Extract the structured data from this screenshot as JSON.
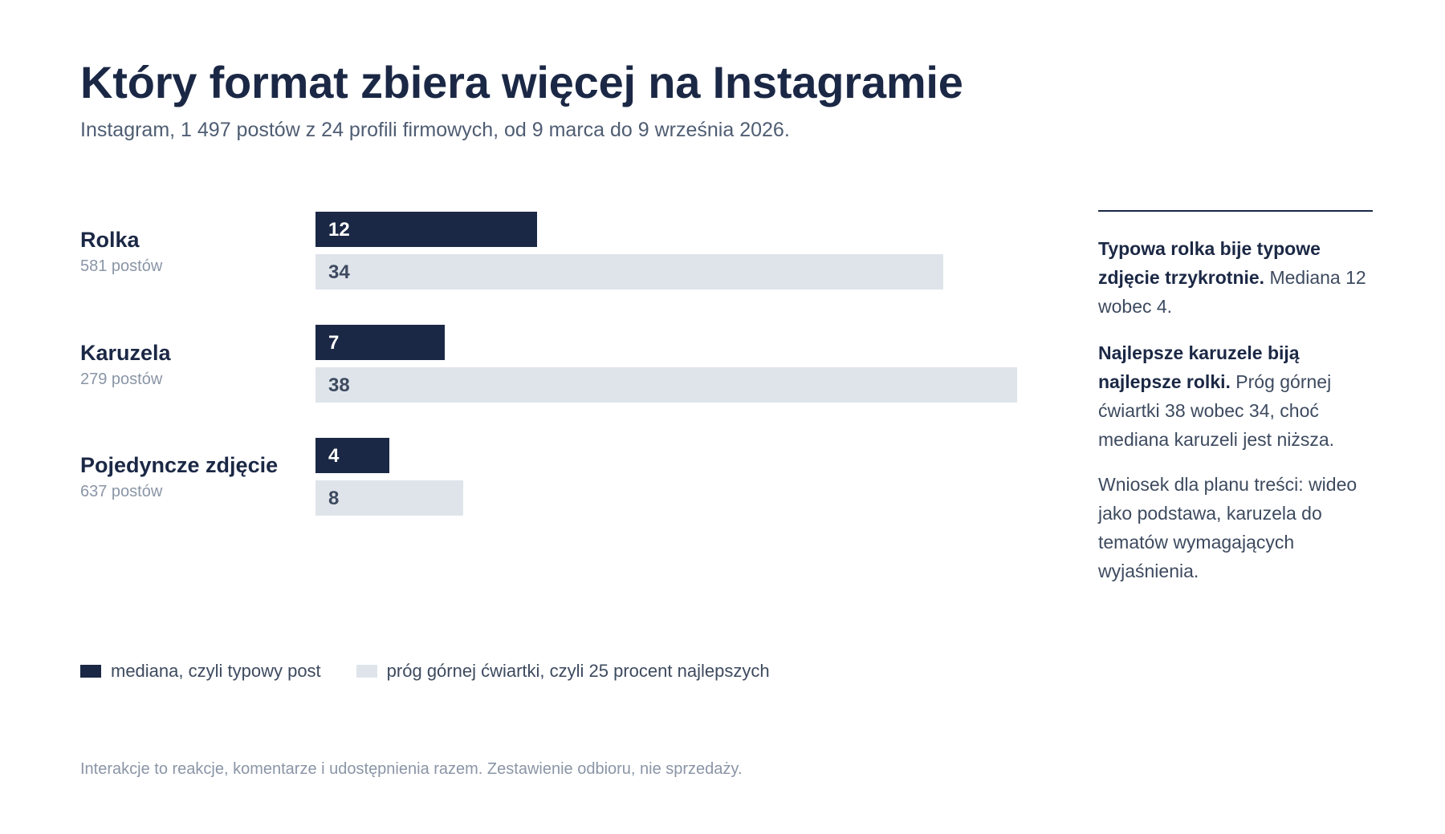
{
  "title": "Który format zbiera więcej na Instagramie",
  "subtitle": "Instagram, 1 497 postów z 24 profili firmowych, od 9 marca do 9 września 2026.",
  "colors": {
    "median": "#1b2845",
    "quartile": "#dfe4eb",
    "median_text": "#ffffff",
    "quartile_text": "#3d4a5f"
  },
  "chart_data": {
    "type": "bar",
    "orientation": "horizontal",
    "categories": [
      "Rolka",
      "Karuzela",
      "Pojedyncze zdjęcie"
    ],
    "post_counts": [
      "581 postów",
      "279 postów",
      "637 postów"
    ],
    "series": [
      {
        "name": "mediana, czyli typowy post",
        "values": [
          12,
          7,
          4
        ]
      },
      {
        "name": "próg górnej ćwiartki, czyli 25 procent najlepszych",
        "values": [
          34,
          38,
          8
        ]
      }
    ],
    "xlim": [
      0,
      38
    ],
    "grid": false,
    "legend_position": "bottom-left"
  },
  "sidebar": {
    "p1_bold": "Typowa rolka bije typowe zdjęcie trzykrotnie.",
    "p1_rest": " Mediana 12 wobec 4.",
    "p2_bold": "Najlepsze karuzele biją najlepsze rolki.",
    "p2_rest": " Próg górnej ćwiartki 38 wobec 34, choć mediana karuzeli jest niższa.",
    "p3": "Wniosek dla planu treści: wideo jako podstawa, karuzela do tematów wymagających wyjaśnienia."
  },
  "legend": {
    "median": "mediana, czyli typowy post",
    "quartile": "próg górnej ćwiartki, czyli 25 procent najlepszych"
  },
  "footnote": "Interakcje to reakcje, komentarze i udostępnienia razem. Zestawienie odbioru, nie sprzedaży."
}
